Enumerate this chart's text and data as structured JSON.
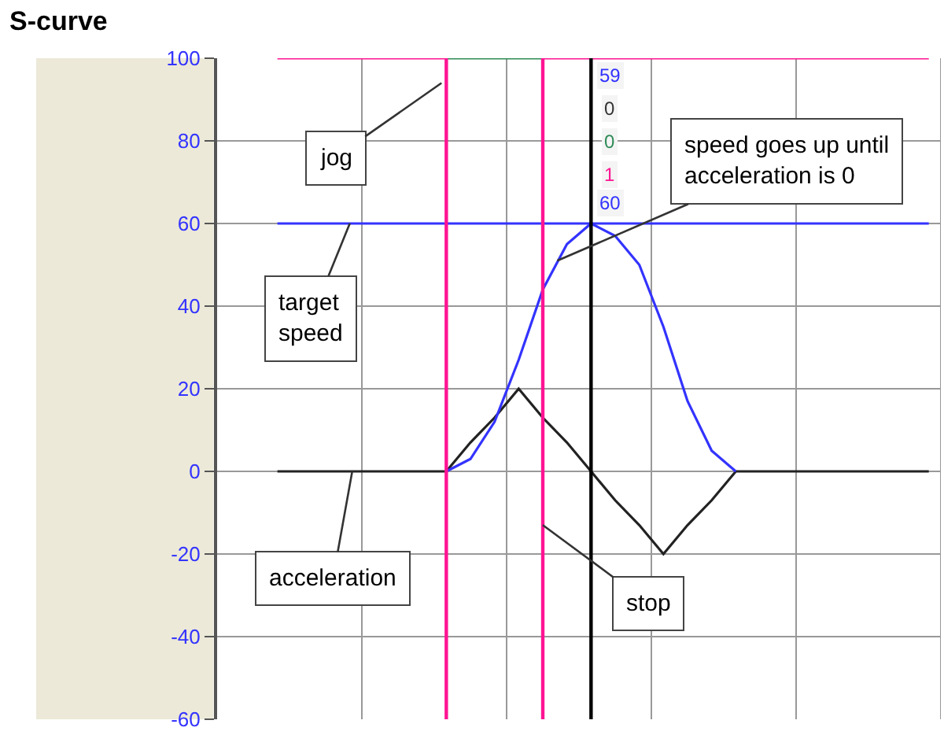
{
  "chart_data": {
    "type": "line",
    "title": "S-curve",
    "categories": [
      null,
      null,
      null,
      null,
      null,
      null,
      null,
      null,
      null,
      null,
      null,
      null,
      null,
      null,
      null,
      null,
      null,
      null,
      null,
      null,
      null,
      null,
      null,
      null,
      null,
      null,
      null,
      null,
      null,
      null
    ],
    "ylim": [
      -60,
      100
    ],
    "yticks": [
      -60,
      -40,
      -20,
      0,
      20,
      40,
      60,
      80,
      100
    ],
    "tick_labels": "y",
    "grid": true,
    "marker": "none",
    "series": [
      {
        "color": "#3333ff",
        "values": [
          null,
          null,
          60,
          60,
          60,
          60,
          60,
          60,
          60,
          60,
          60,
          60,
          60,
          60,
          60,
          60,
          60,
          60,
          60,
          60,
          60,
          60,
          60,
          60,
          60,
          60,
          60,
          60,
          60,
          60
        ]
      },
      {
        "color": "#222222",
        "values": [
          null,
          null,
          0,
          0,
          0,
          0,
          0,
          0,
          0,
          0,
          7,
          13,
          20,
          13,
          7,
          0,
          -7,
          -13,
          -20,
          -13,
          -7,
          0,
          0,
          0,
          0,
          0,
          0,
          0,
          0,
          0
        ]
      },
      {
        "color": "#3333ff",
        "values": [
          null,
          null,
          null,
          null,
          null,
          null,
          null,
          null,
          null,
          0,
          3,
          12,
          27,
          44,
          55,
          60,
          57,
          50,
          35,
          17,
          5,
          0,
          null,
          null,
          null,
          null,
          null,
          null,
          null,
          null
        ]
      },
      {
        "color": "#ff1493",
        "values": [
          null,
          null,
          100,
          100,
          100,
          100,
          100,
          100,
          100,
          100,
          null,
          null,
          null,
          100,
          100,
          100,
          100,
          100,
          100,
          100,
          100,
          100,
          100,
          100,
          100,
          100,
          100,
          100,
          100,
          100
        ]
      },
      {
        "color": "#2e8b57",
        "values": [
          null,
          null,
          null,
          null,
          null,
          null,
          null,
          null,
          null,
          100,
          100,
          100,
          100,
          100,
          null,
          null,
          null,
          null,
          null,
          null,
          null,
          null,
          null,
          null,
          null,
          null,
          null,
          null,
          null,
          null
        ]
      }
    ],
    "annotations": [
      "jog",
      "target\nspeed",
      "acceleration",
      "stop",
      "speed goes up until\nacceleration is 0",
      "59",
      "0",
      "0",
      "1",
      "60"
    ]
  }
}
